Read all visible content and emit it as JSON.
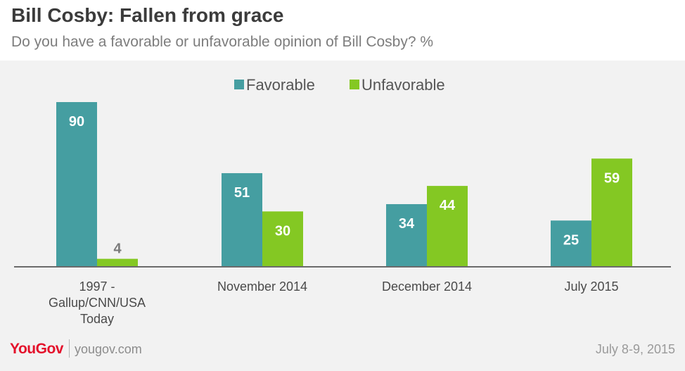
{
  "header": {
    "title": "Bill Cosby: Fallen from grace",
    "subtitle": "Do you have a favorable or unfavorable opinion of Bill Cosby? %"
  },
  "footer": {
    "logo_text": "YouGov",
    "site": "yougov.com",
    "date": "July 8-9, 2015"
  },
  "chart_data": {
    "type": "bar",
    "title": "Bill Cosby: Fallen from grace",
    "subtitle": "Do you have a favorable or unfavorable opinion of Bill Cosby? %",
    "categories": [
      [
        "1997 -",
        "Gallup/CNN/USA",
        "Today"
      ],
      [
        "November 2014"
      ],
      [
        "December 2014"
      ],
      [
        "July 2015"
      ]
    ],
    "series": [
      {
        "name": "Favorable",
        "color": "#459ea1",
        "values": [
          90,
          51,
          34,
          25
        ]
      },
      {
        "name": "Unfavorable",
        "color": "#84c823",
        "values": [
          4,
          30,
          44,
          59
        ]
      }
    ],
    "ylim": [
      0,
      90
    ],
    "legend": "top-center",
    "grid": false,
    "label_colors": {
      "inside": "#ffffff",
      "outside": "#7a7a7a"
    }
  }
}
